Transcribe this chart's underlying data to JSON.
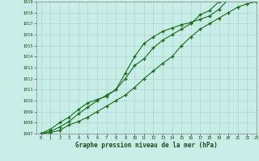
{
  "title": "Graphe pression niveau de la mer (hPa)",
  "x_hours": [
    0,
    1,
    2,
    3,
    4,
    5,
    6,
    7,
    8,
    9,
    10,
    11,
    12,
    13,
    14,
    15,
    16,
    17,
    18,
    19,
    20,
    21,
    22,
    23
  ],
  "line1": [
    1007.0,
    1007.1,
    1007.3,
    1007.8,
    1008.1,
    1008.5,
    1009.0,
    1009.5,
    1010.0,
    1010.5,
    1011.2,
    1012.0,
    1012.7,
    1013.4,
    1014.0,
    1015.0,
    1015.8,
    1016.5,
    1017.0,
    1017.5,
    1018.0,
    1018.5,
    1018.8,
    1019.0
  ],
  "line2": [
    1007.0,
    1007.2,
    1007.6,
    1008.1,
    1008.8,
    1009.4,
    1010.0,
    1010.5,
    1011.0,
    1012.5,
    1014.0,
    1015.2,
    1015.8,
    1016.3,
    1016.6,
    1016.9,
    1017.1,
    1017.4,
    1017.7,
    1018.3,
    1019.2,
    1019.3,
    1019.4,
    1019.0
  ],
  "line3": [
    1007.0,
    1007.4,
    1008.0,
    1008.5,
    1009.2,
    1009.8,
    1010.1,
    1010.4,
    1011.0,
    1012.0,
    1013.2,
    1013.8,
    1014.8,
    1015.5,
    1016.0,
    1016.5,
    1017.0,
    1017.8,
    1018.2,
    1019.0,
    1019.3,
    1019.4,
    1019.2,
    1019.0
  ],
  "ylim": [
    1007,
    1019
  ],
  "xlim": [
    -0.5,
    23
  ],
  "yticks": [
    1007,
    1008,
    1009,
    1010,
    1011,
    1012,
    1013,
    1014,
    1015,
    1016,
    1017,
    1018,
    1019
  ],
  "xticks": [
    0,
    1,
    2,
    3,
    4,
    5,
    6,
    7,
    8,
    9,
    10,
    11,
    12,
    13,
    14,
    15,
    16,
    17,
    18,
    19,
    20,
    21,
    22,
    23
  ],
  "line_color": "#1a6b1a",
  "bg_color": "#c8ede6",
  "grid_color": "#a8d8d0",
  "title_color": "#1a4a1a",
  "tick_label_color": "#1a4a1a",
  "marker": "+"
}
